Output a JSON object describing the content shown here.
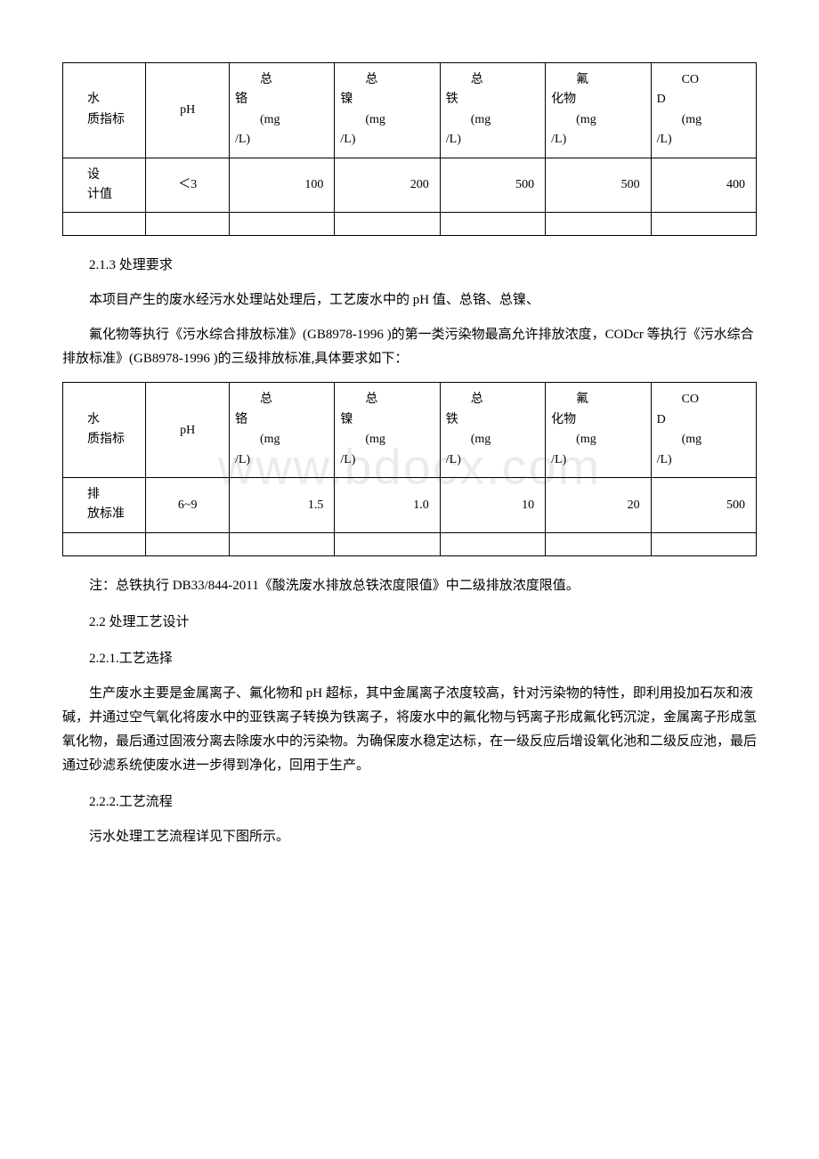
{
  "table1": {
    "headers": {
      "label_l1": "水",
      "label_l2": "质指标",
      "ph": "pH",
      "cols": [
        {
          "l1": "总",
          "l2": "铬",
          "l3": "(mg",
          "l4": "/L)"
        },
        {
          "l1": "总",
          "l2": "镍",
          "l3": "(mg",
          "l4": "/L)"
        },
        {
          "l1": "总",
          "l2": "铁",
          "l3": "(mg",
          "l4": "/L)"
        },
        {
          "l1": "氟",
          "l2": "化物",
          "l3": "(mg",
          "l4": "/L)"
        },
        {
          "l1": "CO",
          "l2": "D",
          "l3": "(mg",
          "l4": "/L)"
        }
      ]
    },
    "row": {
      "label_l1": "设",
      "label_l2": "计值",
      "ph": "＜3",
      "values": [
        "100",
        "200",
        "500",
        "500",
        "400"
      ]
    }
  },
  "text": {
    "s213": "2.1.3 处理要求",
    "p1": "本项目产生的废水经污水处理站处理后，工艺废水中的 pH 值、总铬、总镍、",
    "p2": "氟化物等执行《污水综合排放标准》(GB8978-1996 )的第一类污染物最高允许排放浓度，CODcr 等执行《污水综合排放标准》(GB8978-1996 )的三级排放标准,具体要求如下：",
    "note": "注：总铁执行 DB33/844-2011《酸洗废水排放总铁浓度限值》中二级排放浓度限值。",
    "s22": "2.2 处理工艺设计",
    "s221": "2.2.1.工艺选择",
    "p3": "生产废水主要是金属离子、氟化物和 pH 超标，其中金属离子浓度较高，针对污染物的特性，即利用投加石灰和液碱，并通过空气氧化将废水中的亚铁离子转换为铁离子，将废水中的氟化物与钙离子形成氟化钙沉淀，金属离子形成氢氧化物，最后通过固液分离去除废水中的污染物。为确保废水稳定达标，在一级反应后增设氧化池和二级反应池，最后通过砂滤系统使废水进一步得到净化，回用于生产。",
    "s222": "2.2.2.工艺流程",
    "p4": "污水处理工艺流程详见下图所示。"
  },
  "table2": {
    "headers": {
      "label_l1": "水",
      "label_l2": "质指标",
      "ph": "pH",
      "cols": [
        {
          "l1": "总",
          "l2": "铬",
          "l3": "(mg",
          "l4": "/L)"
        },
        {
          "l1": "总",
          "l2": "镍",
          "l3": "(mg",
          "l4": "/L)"
        },
        {
          "l1": "总",
          "l2": "铁",
          "l3": "(mg",
          "l4": "/L)"
        },
        {
          "l1": "氟",
          "l2": "化物",
          "l3": "(mg",
          "l4": "/L)"
        },
        {
          "l1": "CO",
          "l2": "D",
          "l3": "(mg",
          "l4": "/L)"
        }
      ]
    },
    "row": {
      "label_l1": "排",
      "label_l2": "放标准",
      "ph": "6~9",
      "values": [
        "1.5",
        "1.0",
        "10",
        "20",
        "500"
      ]
    }
  },
  "watermark": "www.bdocx.com"
}
